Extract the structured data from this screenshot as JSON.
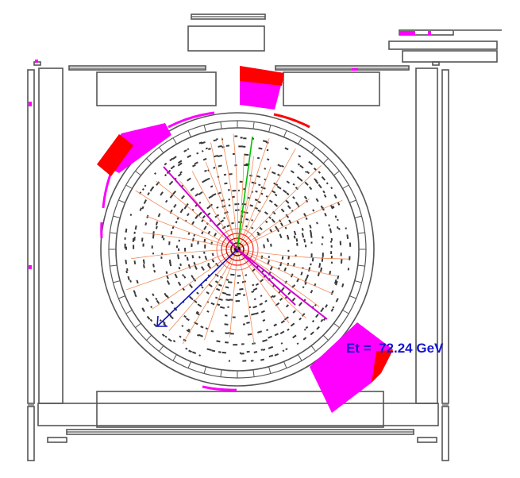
{
  "event_display": {
    "et_label": "Et =  72.24 GeV",
    "colors": {
      "background": "#ffffff",
      "detector_outline": "#555555",
      "track_hits": "#3a3a3a",
      "track_lines": "#f08c5a",
      "met_arrow": "#1010c8",
      "label_text": "#1515d0",
      "em_energy": "#ff00ff",
      "had_energy": "#ff0000",
      "lepton_track": "#00c000",
      "muon_track": "#d000d0"
    }
  }
}
